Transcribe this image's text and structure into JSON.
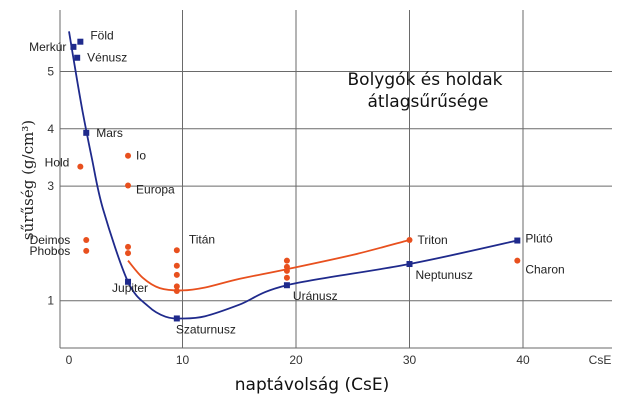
{
  "chart_data": {
    "type": "scatter",
    "title_lines": [
      "Bolygók és holdak",
      "átlagsűrűsége"
    ],
    "xlabel": "naptávolság (CsE)",
    "ylabel": "sűrűség (g/cm³)",
    "x_unit": "CsE",
    "x_ticks": [
      0,
      10,
      20,
      30,
      40
    ],
    "y_ticks": [
      1,
      3,
      4,
      5
    ],
    "xlim": [
      -0.5,
      48
    ],
    "ylim": [
      0,
      6.7
    ],
    "grid": true,
    "colors": {
      "planets": "#1f2a8c",
      "moons": "#e8501e",
      "grid": "#6a6a6a"
    },
    "series": [
      {
        "marker": "square",
        "values": [
          {
            "name": "Merkúr",
            "x": 0.39,
            "y": 5.43
          },
          {
            "name": "Vénusz",
            "x": 0.72,
            "y": 5.24
          },
          {
            "name": "Föld",
            "x": 1.0,
            "y": 5.52
          },
          {
            "name": "Mars",
            "x": 1.52,
            "y": 3.93
          },
          {
            "name": "Jupiter",
            "x": 5.2,
            "y": 1.33
          },
          {
            "name": "Szaturnusz",
            "x": 9.5,
            "y": 0.69
          },
          {
            "name": "Uránusz",
            "x": 19.2,
            "y": 1.27
          },
          {
            "name": "Neptunusz",
            "x": 30.0,
            "y": 1.64
          },
          {
            "name": "Plútó",
            "x": 39.5,
            "y": 2.05
          }
        ]
      },
      {
        "marker": "circle",
        "values": [
          {
            "name": "Hold",
            "x": 1.0,
            "y": 3.34
          },
          {
            "name": "Deimos",
            "x": 1.52,
            "y": 2.06
          },
          {
            "name": "Phobos",
            "x": 1.52,
            "y": 1.87
          },
          {
            "name": "Io",
            "x": 5.2,
            "y": 3.53
          },
          {
            "name": "Europa",
            "x": 5.2,
            "y": 3.01
          },
          {
            "name": "",
            "x": 5.2,
            "y": 1.94
          },
          {
            "name": "",
            "x": 5.2,
            "y": 1.83
          },
          {
            "name": "Titán",
            "x": 9.5,
            "y": 1.88
          },
          {
            "name": "",
            "x": 9.5,
            "y": 1.61
          },
          {
            "name": "",
            "x": 9.5,
            "y": 1.45
          },
          {
            "name": "",
            "x": 9.5,
            "y": 1.25
          },
          {
            "name": "",
            "x": 9.5,
            "y": 1.17
          },
          {
            "name": "",
            "x": 19.2,
            "y": 1.7
          },
          {
            "name": "",
            "x": 19.2,
            "y": 1.59
          },
          {
            "name": "",
            "x": 19.2,
            "y": 1.52
          },
          {
            "name": "",
            "x": 19.2,
            "y": 1.4
          },
          {
            "name": "Triton",
            "x": 30.0,
            "y": 2.06
          },
          {
            "name": "Charon",
            "x": 39.5,
            "y": 1.7
          }
        ]
      }
    ],
    "curves": [
      {
        "color": "planets",
        "points": [
          [
            0,
            5.7
          ],
          [
            0.5,
            5.1
          ],
          [
            1.2,
            4.3
          ],
          [
            2,
            3.5
          ],
          [
            3,
            2.6
          ],
          [
            5.2,
            1.33
          ],
          [
            7,
            0.9
          ],
          [
            8.5,
            0.72
          ],
          [
            10,
            0.69
          ],
          [
            12,
            0.73
          ],
          [
            15,
            0.93
          ],
          [
            19.2,
            1.27
          ],
          [
            30,
            1.64
          ],
          [
            39.5,
            2.05
          ]
        ]
      },
      {
        "color": "moons",
        "points": [
          [
            5.2,
            1.7
          ],
          [
            6.5,
            1.4
          ],
          [
            8,
            1.22
          ],
          [
            10,
            1.18
          ],
          [
            12,
            1.23
          ],
          [
            15,
            1.38
          ],
          [
            19.2,
            1.55
          ],
          [
            25,
            1.8
          ],
          [
            30,
            2.06
          ]
        ]
      }
    ]
  }
}
